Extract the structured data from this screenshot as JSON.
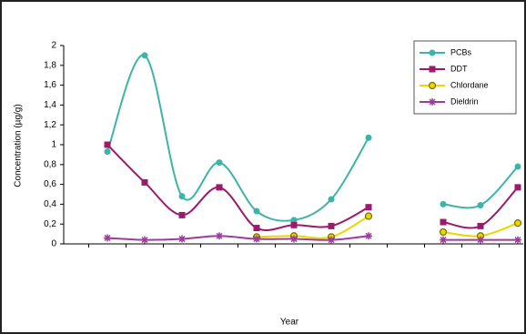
{
  "chart_data": {
    "type": "line",
    "y_label": "Concentration (µg/g)",
    "x_label": "Year",
    "categories": [
      null,
      null,
      null,
      null,
      null,
      null,
      null,
      null,
      null,
      null,
      null,
      null,
      null
    ],
    "ylim": [
      0,
      2
    ],
    "yticks": [
      0,
      {
        "value": 0.2,
        "label": "0,2"
      },
      {
        "value": 0.4,
        "label": "0,4"
      },
      {
        "value": 0.6,
        "label": "0,6"
      },
      {
        "value": 0.8,
        "label": "0,8"
      },
      1,
      {
        "value": 1.2,
        "label": "1,2"
      },
      {
        "value": 1.4,
        "label": "1,4"
      },
      {
        "value": 1.6,
        "label": "1,6"
      },
      {
        "value": 1.8,
        "label": "1,8"
      },
      2
    ],
    "legend": "top-right",
    "series": [
      {
        "name": "PCBs",
        "color": "#3cb4a8",
        "marker": "circle",
        "values": [
          null,
          0.93,
          1.9,
          0.48,
          0.82,
          0.33,
          0.24,
          0.45,
          1.07,
          null,
          0.4,
          0.39,
          0.78
        ]
      },
      {
        "name": "DDT",
        "color": "#9c1a6e",
        "marker": "square",
        "values": [
          null,
          1.0,
          0.62,
          0.29,
          0.57,
          0.16,
          0.19,
          0.18,
          0.37,
          null,
          0.22,
          0.18,
          0.57
        ]
      },
      {
        "name": "Chlordane",
        "color": "#e8d800",
        "marker": "ring",
        "values": [
          null,
          null,
          null,
          null,
          null,
          0.07,
          0.08,
          0.07,
          0.28,
          null,
          0.12,
          0.08,
          0.21
        ]
      },
      {
        "name": "Dieldrin",
        "color": "#9c3c9c",
        "marker": "star",
        "values": [
          null,
          0.06,
          0.04,
          0.05,
          0.08,
          0.05,
          0.05,
          0.04,
          0.08,
          null,
          0.04,
          0.04,
          0.04
        ]
      }
    ]
  }
}
